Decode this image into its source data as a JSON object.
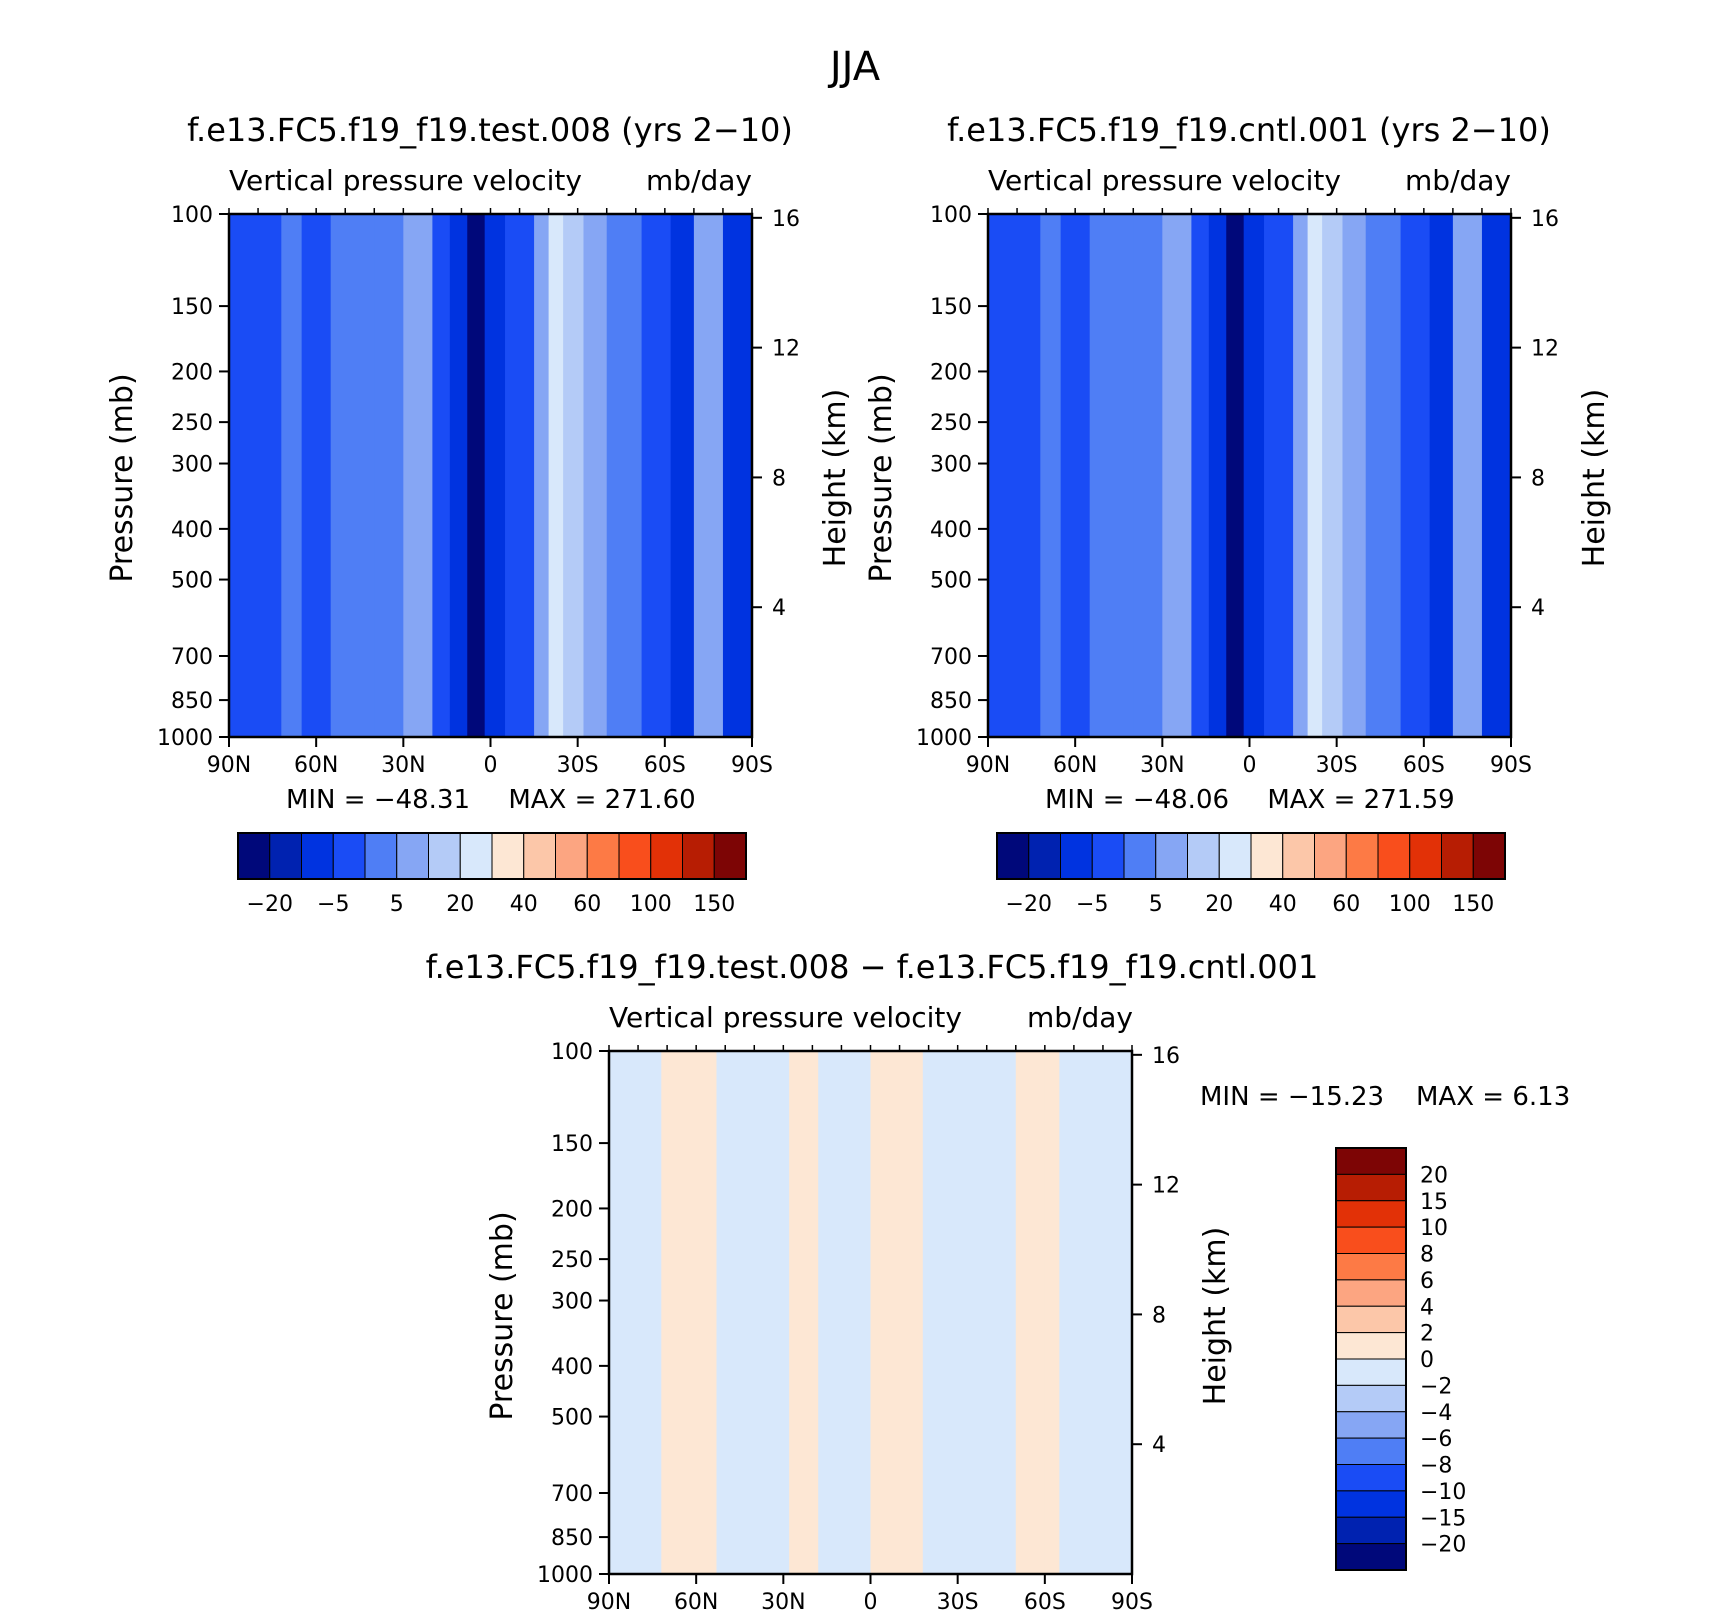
{
  "title": "JJA",
  "colors": {
    "abs_levels": [
      "#00087a",
      "#0022b0",
      "#0033e0",
      "#1a4cf5",
      "#4f7ef5",
      "#86a6f4",
      "#b4cbf7",
      "#d8e8fb",
      "#fde7d4",
      "#fcc7a9",
      "#fca581",
      "#fd7a45",
      "#f94e1c",
      "#e23107",
      "#b71d03",
      "#7d0505"
    ],
    "diff_levels": [
      "#00087a",
      "#0022b0",
      "#0033e0",
      "#1a4cf5",
      "#4f7ef5",
      "#86a6f4",
      "#b4cbf7",
      "#d8e8fb",
      "#fde7d4",
      "#fcc7a9",
      "#fca581",
      "#fd7a45",
      "#f94e1c",
      "#e23107",
      "#b71d03",
      "#7d0505"
    ]
  },
  "chart_data": [
    {
      "type": "heatmap",
      "panel": "test",
      "title": "f.e13.FC5.f19_f19.test.008 (yrs 2−10)",
      "subtitle_left": "Vertical pressure velocity",
      "subtitle_right": "mb/day",
      "ylabel": "Pressure (mb)",
      "ylabel_right": "Height (km)",
      "y_ticks": [
        "100",
        "150",
        "200",
        "250",
        "300",
        "400",
        "500",
        "700",
        "850",
        "1000"
      ],
      "y_right_ticks": [
        "16",
        "12",
        "8",
        "4"
      ],
      "x_ticks": [
        "90N",
        "60N",
        "30N",
        "0",
        "30S",
        "60S",
        "90S"
      ],
      "min_label": "MIN = −48.31",
      "max_label": "MAX = 271.60",
      "colorbar_labels": [
        "−20",
        "−5",
        "5",
        "20",
        "40",
        "60",
        "100",
        "150"
      ],
      "lat_profile": [
        {
          "lat": 90,
          "level": 3
        },
        {
          "lat": 80,
          "level": 3
        },
        {
          "lat": 72,
          "level": 4
        },
        {
          "lat": 65,
          "level": 3
        },
        {
          "lat": 55,
          "level": 4
        },
        {
          "lat": 40,
          "level": 4
        },
        {
          "lat": 30,
          "level": 5
        },
        {
          "lat": 20,
          "level": 3
        },
        {
          "lat": 14,
          "level": 2
        },
        {
          "lat": 8,
          "level": 0
        },
        {
          "lat": 2,
          "level": 2
        },
        {
          "lat": -5,
          "level": 3
        },
        {
          "lat": -15,
          "level": 5
        },
        {
          "lat": -20,
          "level": 7
        },
        {
          "lat": -25,
          "level": 6
        },
        {
          "lat": -32,
          "level": 5
        },
        {
          "lat": -40,
          "level": 4
        },
        {
          "lat": -52,
          "level": 3
        },
        {
          "lat": -62,
          "level": 2
        },
        {
          "lat": -70,
          "level": 5
        },
        {
          "lat": -80,
          "level": 2
        },
        {
          "lat": -90,
          "level": 3
        }
      ]
    },
    {
      "type": "heatmap",
      "panel": "cntl",
      "title": "f.e13.FC5.f19_f19.cntl.001 (yrs 2−10)",
      "subtitle_left": "Vertical pressure velocity",
      "subtitle_right": "mb/day",
      "ylabel": "Pressure (mb)",
      "ylabel_right": "Height (km)",
      "y_ticks": [
        "100",
        "150",
        "200",
        "250",
        "300",
        "400",
        "500",
        "700",
        "850",
        "1000"
      ],
      "y_right_ticks": [
        "16",
        "12",
        "8",
        "4"
      ],
      "x_ticks": [
        "90N",
        "60N",
        "30N",
        "0",
        "30S",
        "60S",
        "90S"
      ],
      "min_label": "MIN = −48.06",
      "max_label": "MAX = 271.59",
      "colorbar_labels": [
        "−20",
        "−5",
        "5",
        "20",
        "40",
        "60",
        "100",
        "150"
      ],
      "lat_profile": [
        {
          "lat": 90,
          "level": 3
        },
        {
          "lat": 80,
          "level": 3
        },
        {
          "lat": 72,
          "level": 4
        },
        {
          "lat": 65,
          "level": 3
        },
        {
          "lat": 55,
          "level": 4
        },
        {
          "lat": 40,
          "level": 4
        },
        {
          "lat": 30,
          "level": 5
        },
        {
          "lat": 20,
          "level": 3
        },
        {
          "lat": 14,
          "level": 2
        },
        {
          "lat": 8,
          "level": 0
        },
        {
          "lat": 2,
          "level": 2
        },
        {
          "lat": -5,
          "level": 3
        },
        {
          "lat": -15,
          "level": 5
        },
        {
          "lat": -20,
          "level": 7
        },
        {
          "lat": -25,
          "level": 6
        },
        {
          "lat": -32,
          "level": 5
        },
        {
          "lat": -40,
          "level": 4
        },
        {
          "lat": -52,
          "level": 3
        },
        {
          "lat": -62,
          "level": 2
        },
        {
          "lat": -70,
          "level": 5
        },
        {
          "lat": -80,
          "level": 2
        },
        {
          "lat": -90,
          "level": 3
        }
      ]
    },
    {
      "type": "heatmap",
      "panel": "diff",
      "title": "f.e13.FC5.f19_f19.test.008 − f.e13.FC5.f19_f19.cntl.001",
      "subtitle_left": "Vertical pressure velocity",
      "subtitle_right": "mb/day",
      "ylabel": "Pressure (mb)",
      "ylabel_right": "Height (km)",
      "y_ticks": [
        "100",
        "150",
        "200",
        "250",
        "300",
        "400",
        "500",
        "700",
        "850",
        "1000"
      ],
      "y_right_ticks": [
        "16",
        "12",
        "8",
        "4"
      ],
      "x_ticks": [
        "90N",
        "60N",
        "30N",
        "0",
        "30S",
        "60S",
        "90S"
      ],
      "min_label": "MIN = −15.23",
      "max_label": "MAX =    6.13",
      "colorbar_labels": [
        "20",
        "15",
        "10",
        "8",
        "6",
        "4",
        "2",
        "0",
        "−2",
        "−4",
        "−6",
        "−8",
        "−10",
        "−15",
        "−20"
      ],
      "lat_profile": [
        {
          "lat": 90,
          "level": 7
        },
        {
          "lat": 80,
          "level": 7
        },
        {
          "lat": 72,
          "level": 8
        },
        {
          "lat": 60,
          "level": 8
        },
        {
          "lat": 53,
          "level": 7
        },
        {
          "lat": 40,
          "level": 7
        },
        {
          "lat": 28,
          "level": 8
        },
        {
          "lat": 18,
          "level": 7
        },
        {
          "lat": 0,
          "level": 8
        },
        {
          "lat": -10,
          "level": 8
        },
        {
          "lat": -18,
          "level": 7
        },
        {
          "lat": -30,
          "level": 7
        },
        {
          "lat": -42,
          "level": 7
        },
        {
          "lat": -50,
          "level": 8
        },
        {
          "lat": -60,
          "level": 8
        },
        {
          "lat": -65,
          "level": 7
        },
        {
          "lat": -90,
          "level": 7
        }
      ]
    }
  ]
}
